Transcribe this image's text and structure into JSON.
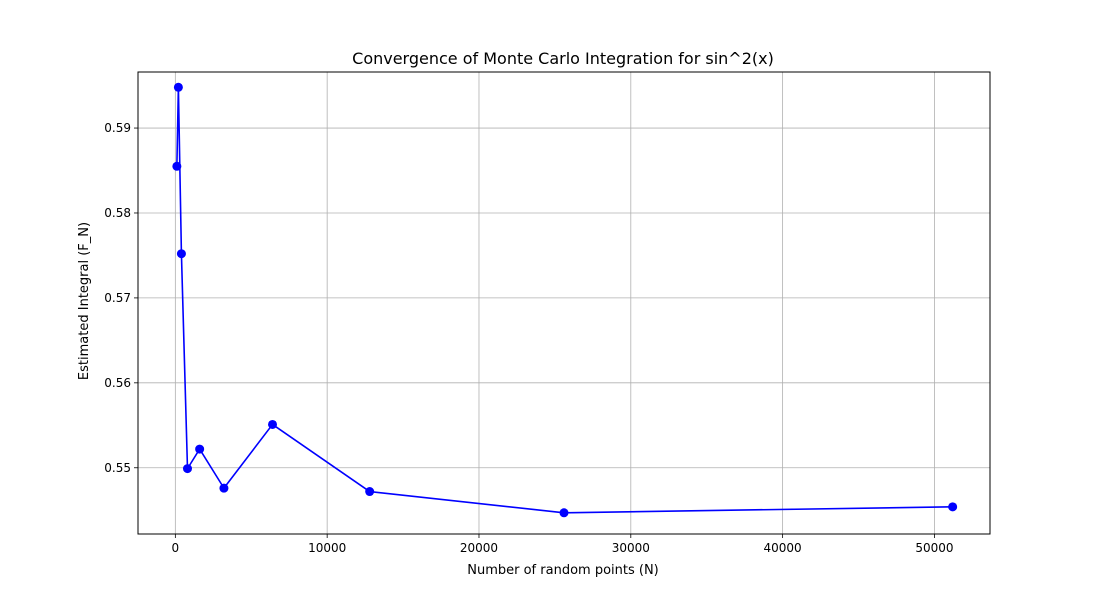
{
  "chart_data": {
    "type": "line",
    "title": "Convergence of Monte Carlo Integration for sin^2(x)",
    "xlabel": "Number of random points (N)",
    "ylabel": "Estimated Integral (F_N)",
    "xlim": [
      -2460,
      53660
    ],
    "ylim": [
      0.5422,
      0.5966
    ],
    "xticks": [
      0,
      10000,
      20000,
      30000,
      40000,
      50000
    ],
    "yticks": [
      0.55,
      0.56,
      0.57,
      0.58,
      0.59
    ],
    "grid": true,
    "legend": "none",
    "series": [
      {
        "color": "#0000ff",
        "marker": "circle",
        "x": [
          100,
          200,
          400,
          800,
          1600,
          3200,
          6400,
          12800,
          25600,
          51200
        ],
        "y": [
          0.5855,
          0.5948,
          0.5752,
          0.5499,
          0.5522,
          0.5476,
          0.5551,
          0.5472,
          0.5447,
          0.5454
        ]
      }
    ]
  }
}
